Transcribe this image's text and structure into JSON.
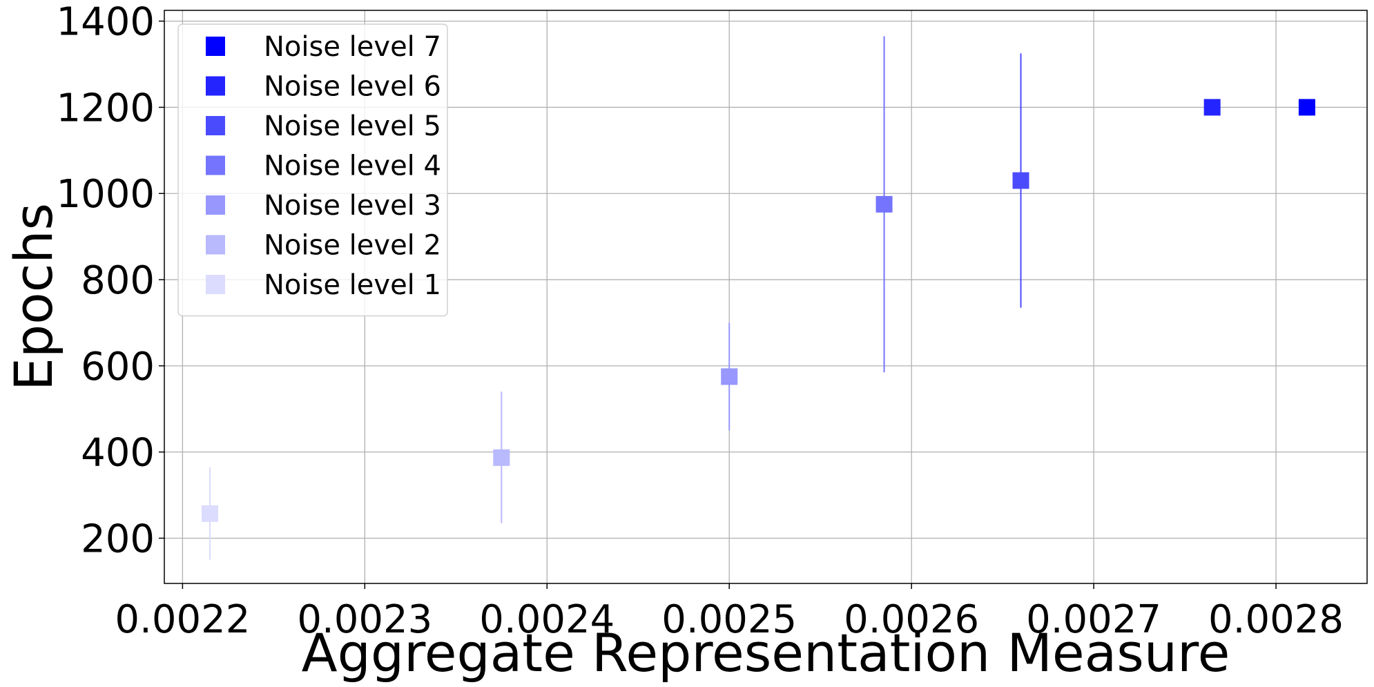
{
  "chart_data": {
    "type": "scatter",
    "xlabel": "Aggregate Representation Measure",
    "ylabel": "Epochs",
    "xlim": [
      0.00219,
      0.00285
    ],
    "ylim": [
      95,
      1425
    ],
    "x_ticks": [
      0.0022,
      0.0023,
      0.0024,
      0.0025,
      0.0026,
      0.0027,
      0.0028
    ],
    "x_tick_labels": [
      "0.0022",
      "0.0023",
      "0.0024",
      "0.0025",
      "0.0026",
      "0.0027",
      "0.0028"
    ],
    "y_ticks": [
      200,
      400,
      600,
      800,
      1000,
      1200,
      1400
    ],
    "y_tick_labels": [
      "200",
      "400",
      "600",
      "800",
      "1000",
      "1200",
      "1400"
    ],
    "grid": true,
    "legend_position": "top-left",
    "legend_order": [
      "Noise level 7",
      "Noise level 6",
      "Noise level 5",
      "Noise level 4",
      "Noise level 3",
      "Noise level 2",
      "Noise level 1"
    ],
    "series": [
      {
        "name": "Noise level 1",
        "color": "#dcdcfe",
        "x": 0.002215,
        "y": 257,
        "err_low": 150,
        "err_high": 365
      },
      {
        "name": "Noise level 2",
        "color": "#b9b9fe",
        "x": 0.002375,
        "y": 387,
        "err_low": 235,
        "err_high": 540
      },
      {
        "name": "Noise level 3",
        "color": "#9797fe",
        "x": 0.0025,
        "y": 575,
        "err_low": 450,
        "err_high": 700
      },
      {
        "name": "Noise level 4",
        "color": "#7474fe",
        "x": 0.002585,
        "y": 975,
        "err_low": 585,
        "err_high": 1365
      },
      {
        "name": "Noise level 5",
        "color": "#4b4bfe",
        "x": 0.00266,
        "y": 1030,
        "err_low": 735,
        "err_high": 1325
      },
      {
        "name": "Noise level 6",
        "color": "#2424fe",
        "x": 0.002765,
        "y": 1200,
        "err_low": 1200,
        "err_high": 1200
      },
      {
        "name": "Noise level 7",
        "color": "#0000fe",
        "x": 0.002817,
        "y": 1200,
        "err_low": 1200,
        "err_high": 1200
      }
    ]
  }
}
